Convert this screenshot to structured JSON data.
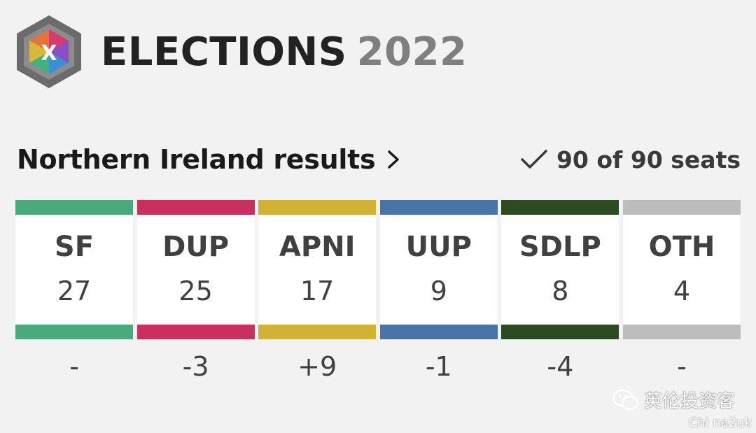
{
  "header": {
    "title_word": "ELECTIONS",
    "title_year": "2022",
    "logo_icon": "bbc-elections-cube-icon",
    "logo_letter": "X"
  },
  "results": {
    "title": "Northern Ireland results",
    "chevron_icon": "chevron-right-icon",
    "status_icon": "check-icon",
    "seats_text": "90 of 90 seats"
  },
  "parties": [
    {
      "name": "SF",
      "seats": "27",
      "change": "-",
      "color": "#4aaa7e"
    },
    {
      "name": "DUP",
      "seats": "25",
      "change": "-3",
      "color": "#c9305f"
    },
    {
      "name": "APNI",
      "seats": "17",
      "change": "+9",
      "color": "#d2b234"
    },
    {
      "name": "UUP",
      "seats": "9",
      "change": "-1",
      "color": "#4874a8"
    },
    {
      "name": "SDLP",
      "seats": "8",
      "change": "-4",
      "color": "#2b4a22"
    },
    {
      "name": "OTH",
      "seats": "4",
      "change": "-",
      "color": "#bcbcbc"
    }
  ],
  "watermark": {
    "icon": "wechat-icon",
    "text": "英伦投资客",
    "sub": "Chi na2uk"
  }
}
